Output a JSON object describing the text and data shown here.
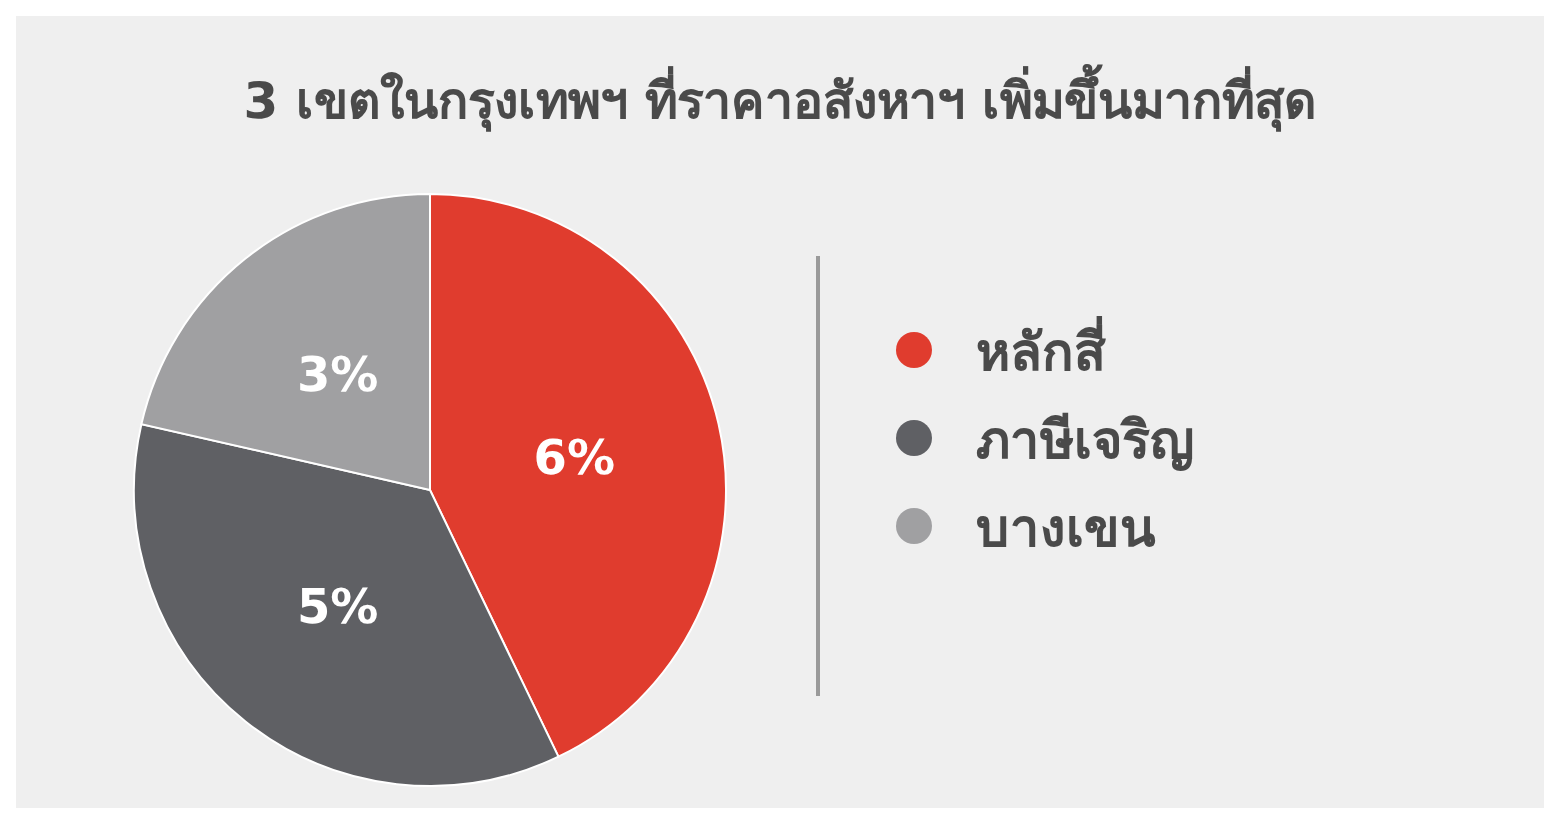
{
  "chart_data": {
    "type": "pie",
    "title": "3 เขตในกรุงเทพฯ ที่ราคาอสังหาฯ เพิ่มขึ้นมากที่สุด",
    "categories": [
      "หลักสี่",
      "ภาษีเจริญ",
      "บางเขน"
    ],
    "values": [
      6,
      5,
      3
    ],
    "colors": [
      "#e03c2e",
      "#5f6064",
      "#a0a0a2"
    ],
    "value_labels": [
      "6%",
      "5%",
      "3%"
    ],
    "legend": "right"
  }
}
